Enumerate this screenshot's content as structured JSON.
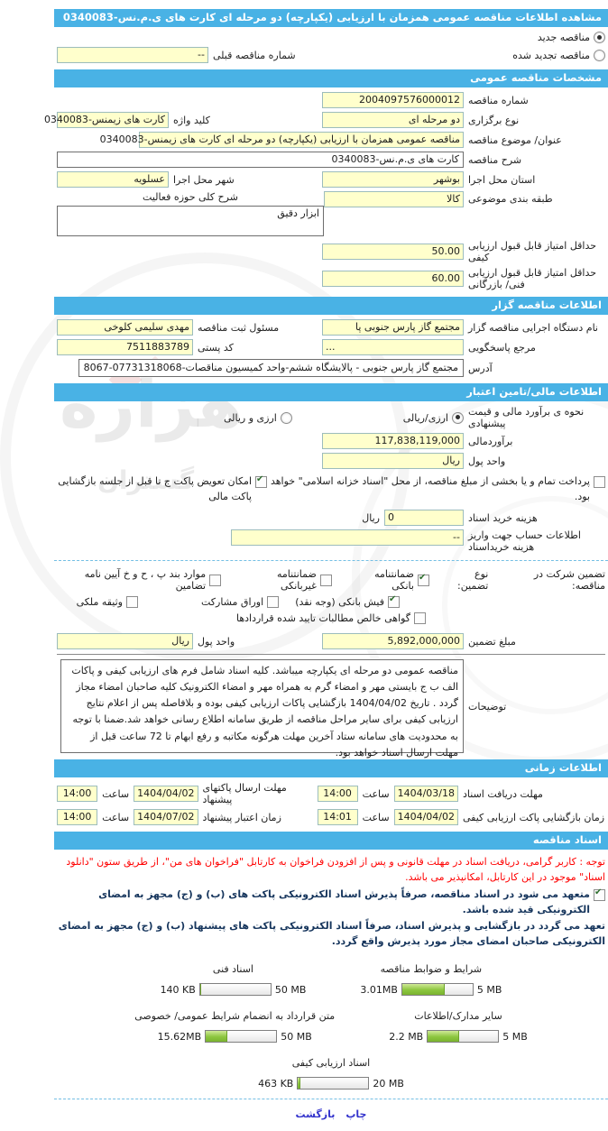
{
  "title": "مشاهده اطلاعات مناقصه  عمومی همزمان با ارزیابی  (یکپارچه) دو مرحله ای کارت های ی.م.نس-0340083",
  "tender_type": {
    "new_label": "مناقصه جدید",
    "new_selected": true,
    "renewed_label": "مناقصه تجدید شده",
    "renewed_selected": false,
    "prev_number_label": "شماره  مناقصه  قبلی",
    "prev_number_value": "--"
  },
  "sections": {
    "general": "مشخصات مناقصه  عمومی",
    "organizer": "اطلاعات مناقصه گزار",
    "financial": "اطلاعات مالی/تامین اعتبار",
    "schedule": "اطلاعات زمانی",
    "documents": "اسناد مناقصه"
  },
  "general": {
    "number_label": "شماره  مناقصه",
    "number_value": "2004097576000012",
    "type_label": "نوع  برگزاری",
    "type_value": "دو مرحله ای",
    "keyword_label": "کلید واژه",
    "keyword_value": "کارت های زیمنس-0340083",
    "subject_label": "عنوان/ موضوع  مناقصه",
    "subject_value": "مناقصه عمومی همزمان با ارزیابی (یکپارچه) دو مرحله ای کارت های زیمنس-0340083",
    "desc_label": "شرح  مناقصه",
    "desc_value": "کارت های ی.م.نس-0340083",
    "province_label": "استان محل اجرا",
    "province_value": "بوشهر",
    "city_label": "شهر محل اجرا",
    "city_value": "عسلویه",
    "category_label": "طبقه  بندی  موضوعی",
    "category_value": "کالا",
    "activity_label": "شرح کلی حوزه فعالیت",
    "activity_value": "ابزار دقیق",
    "min_quality_label": "حداقل امتیاز قابل قبول ارزیابی کیفی",
    "min_quality_value": "50.00",
    "min_technical_label": "حداقل امتیاز قابل قبول ارزیابی فنی/ بازرگانی",
    "min_technical_value": "60.00"
  },
  "organizer": {
    "agency_label": "نام دستگاه اجرایی مناقصه گزار",
    "agency_value": "مجتمع گاز پارس جنوبی پا",
    "registrar_label": "مسئول ثبت مناقصه",
    "registrar_value": "مهدی سلیمی کلوخی",
    "reference_label": "مرجع پاسخگویی",
    "reference_value": "...",
    "postal_label": "کد پستی",
    "postal_value": "7511883789",
    "address_label": "آدرس",
    "address_value": "مجتمع گاز پارس جنوبی - پالایشگاه ششم-واحد کمیسیون مناقصات-07731318068-8067"
  },
  "financial": {
    "method_label": "نحوه ی برآورد مالی و قیمت  پیشنهادی",
    "method_options": [
      {
        "label": "ارزی/ریالی",
        "selected": true
      },
      {
        "label": "ارزی و ریالی",
        "selected": false
      }
    ],
    "estimate_label": "برآوردمالی",
    "estimate_value": "117,838,119,000",
    "currency_label": "واحد پول",
    "currency_value": "ریال",
    "treasury_note": {
      "label": "پرداخت تمام و یا بخشی از مبلغ  مناقصه، از محل \"اسناد خزانه اسلامی\" خواهد بود.",
      "checked": false
    },
    "swap_note": {
      "label": "امکان تعویض پاکت ج تا قبل از جلسه  بازگشایی پاکت مالی",
      "checked": true
    },
    "doc_fee_label": "هزینه خرید اسناد",
    "doc_fee_value": "0",
    "doc_fee_unit": "ریال",
    "account_label": "اطلاعات حساب جهت واریز هزینه خریداسناد",
    "account_value": "--",
    "guarantee_intro": "تضمین شرکت در مناقصه:",
    "guarantee_type_label": "نوع  تضمین:",
    "guarantee_options": [
      {
        "label": "ضمانتنامه بانکی",
        "checked": true
      },
      {
        "label": "ضمانتنامه غیربانکی",
        "checked": false
      },
      {
        "label": "موارد بند پ ، ح و خ آیین نامه تضامین",
        "checked": false
      },
      {
        "label": "فیش بانکی (وجه نقد)",
        "checked": true
      },
      {
        "label": "اوراق  مشارکت",
        "checked": false
      },
      {
        "label": "وثیقه ملکی",
        "checked": false
      },
      {
        "label": "گواهی خالص مطالبات تایید شده قراردادها",
        "checked": false
      }
    ],
    "guarantee_amount_label": "مبلغ  تضمین",
    "guarantee_amount_value": "5,892,000,000",
    "guarantee_currency_label": "واحد پول",
    "guarantee_currency_value": "ریال",
    "notes_label": "توضیحات",
    "notes_value": "مناقصه عمومی دو مرحله ای یکپارچه میباشد. کلیه اسناد شامل فرم های ارزیابی کیفی و پاکات الف ب ج بایستی مهر و امضاء گرم به همراه مهر و امضاء الکترونیک کلیه صاحبان امضاء مجاز گردد . تاریخ 1404/04/02 بازگشایی پاکات ارزیابی کیفی بوده و بلافاصله پس از اعلام نتایج ارزیابی کیفی برای سایر مراحل مناقصه از طریق سامانه اطلاع رسانی خواهد شد.ضمنا با توجه به محدودیت های سامانه ستاد آخرین مهلت هرگونه مکاتبه و رفع ابهام تا 72 ساعت قبل از مهلت ارسال اسناد خواهد بود."
  },
  "schedule": {
    "time_label": "ساعت",
    "items": [
      {
        "label": "مهلت دریافت اسناد",
        "date": "1404/03/18",
        "time": "14:00"
      },
      {
        "label": "مهلت ارسال پاکتهای  پیشنهاد",
        "date": "1404/04/02",
        "time": "14:00"
      },
      {
        "label": "زمان بازگشایی پاکت ارزیابی کیفی",
        "date": "1404/04/02",
        "time": "14:01"
      },
      {
        "label": "زمان اعتبار پیشنهاد",
        "date": "1404/07/02",
        "time": "14:00"
      }
    ]
  },
  "documents": {
    "notice": "توجه : کاربر گرامی، دریافت اسناد در مهلت قانونی و پس از افزودن فراخوان به کارتابل \"فراخوان های من\"، از طریق ستون \"دانلود اسناد\" موجود در این کارتابل، امکانپذیر می باشد.",
    "commitment1": {
      "label": "متعهد می شود در اسناد مناقصه، صرفاً پذیرش اسناد الکترونیکی پاکت های (ب) و (ج) مجهز به امضای الکترونیکی قید شده باشد.",
      "checked": true
    },
    "commitment2": "تعهد می گردد در بازگشایی و پذیرش اسناد، صرفاً اسناد الکترونیکی پاکت های پیشنهاد (ب) و (ج) مجهز به امضای الکترونیکی صاحبان امضای مجاز مورد پذیرش واقع گردد.",
    "uploads": [
      {
        "label": "شرایط و ضوابط  مناقصه",
        "size": "3.01MB",
        "max": "5 MB",
        "percent": 60
      },
      {
        "label": "اسناد  فنی",
        "size": "140 KB",
        "max": "50 MB",
        "percent": 1
      },
      {
        "label": "متن قرارداد به  انضمام شرایط عمومی/ خصوصی",
        "size": "15.62MB",
        "max": "50 MB",
        "percent": 31
      },
      {
        "label": "سایر مدارک/اطلاعات",
        "size": "2.2 MB",
        "max": "5 MB",
        "percent": 44
      },
      {
        "label": "اسناد  ارزیابی کیفی",
        "size": "463 KB",
        "max": "20 MB",
        "percent": 3
      }
    ]
  },
  "colors": {
    "header_bar": "#49b2e5",
    "field_bg": "#ffffcc",
    "progress_green": "#8cc63f",
    "notice_red": "#ff0000",
    "link_blue": "#3333cc"
  },
  "footer": {
    "print_label": "چاپ",
    "back_label": "بازگشت"
  }
}
